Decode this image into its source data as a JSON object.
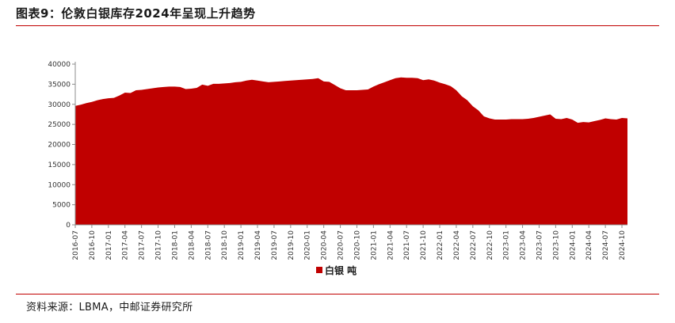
{
  "header": {
    "title": "图表9：伦敦白银库存2024年呈现上升趋势"
  },
  "footer": {
    "source": "资料来源：LBMA，中邮证券研究所"
  },
  "colors": {
    "series": "#c00000",
    "rule": "#c00000",
    "axis": "#8c8c8c"
  },
  "chart_data": {
    "type": "area",
    "ylim": [
      0,
      40000
    ],
    "yticks": [
      0,
      5000,
      10000,
      15000,
      20000,
      25000,
      30000,
      35000,
      40000
    ],
    "xticks": [
      "2016-07",
      "2016-10",
      "2017-01",
      "2017-04",
      "2017-07",
      "2017-10",
      "2018-01",
      "2018-04",
      "2018-07",
      "2018-10",
      "2019-01",
      "2019-04",
      "2019-07",
      "2019-10",
      "2020-01",
      "2020-04",
      "2020-07",
      "2020-10",
      "2021-01",
      "2021-04",
      "2021-07",
      "2021-10",
      "2022-01",
      "2022-04",
      "2022-07",
      "2022-10",
      "2023-01",
      "2023-04",
      "2023-07",
      "2023-10",
      "2024-01",
      "2024-04",
      "2024-07",
      "2024-10"
    ],
    "legend_position": "bottom",
    "series": [
      {
        "name": "白银 吨",
        "x": [
          "2016-07",
          "2016-08",
          "2016-09",
          "2016-10",
          "2016-11",
          "2016-12",
          "2017-01",
          "2017-02",
          "2017-03",
          "2017-04",
          "2017-05",
          "2017-06",
          "2017-07",
          "2017-08",
          "2017-09",
          "2017-10",
          "2017-11",
          "2017-12",
          "2018-01",
          "2018-02",
          "2018-03",
          "2018-04",
          "2018-05",
          "2018-06",
          "2018-07",
          "2018-08",
          "2018-09",
          "2018-10",
          "2018-11",
          "2018-12",
          "2019-01",
          "2019-02",
          "2019-03",
          "2019-04",
          "2019-05",
          "2019-06",
          "2019-07",
          "2019-08",
          "2019-09",
          "2019-10",
          "2019-11",
          "2019-12",
          "2020-01",
          "2020-02",
          "2020-03",
          "2020-04",
          "2020-05",
          "2020-06",
          "2020-07",
          "2020-08",
          "2020-09",
          "2020-10",
          "2020-11",
          "2020-12",
          "2021-01",
          "2021-02",
          "2021-03",
          "2021-04",
          "2021-05",
          "2021-06",
          "2021-07",
          "2021-08",
          "2021-09",
          "2021-10",
          "2021-11",
          "2021-12",
          "2022-01",
          "2022-02",
          "2022-03",
          "2022-04",
          "2022-05",
          "2022-06",
          "2022-07",
          "2022-08",
          "2022-09",
          "2022-10",
          "2022-11",
          "2022-12",
          "2023-01",
          "2023-02",
          "2023-03",
          "2023-04",
          "2023-05",
          "2023-06",
          "2023-07",
          "2023-08",
          "2023-09",
          "2023-10",
          "2023-11",
          "2023-12",
          "2024-01",
          "2024-02",
          "2024-03",
          "2024-04",
          "2024-05",
          "2024-06",
          "2024-07",
          "2024-08",
          "2024-09",
          "2024-10",
          "2024-11"
        ],
        "values": [
          29600,
          29900,
          30300,
          30600,
          31000,
          31300,
          31500,
          31600,
          32200,
          32900,
          32800,
          33500,
          33600,
          33800,
          34000,
          34200,
          34300,
          34400,
          34400,
          34300,
          33800,
          33900,
          34100,
          34900,
          34600,
          35100,
          35100,
          35200,
          35300,
          35500,
          35600,
          35900,
          36100,
          35900,
          35700,
          35500,
          35600,
          35700,
          35800,
          35900,
          36000,
          36100,
          36200,
          36300,
          36500,
          35700,
          35600,
          34800,
          34000,
          33500,
          33500,
          33500,
          33600,
          33700,
          34400,
          35000,
          35500,
          36000,
          36500,
          36700,
          36600,
          36600,
          36500,
          36000,
          36200,
          35900,
          35400,
          35000,
          34500,
          33500,
          32000,
          31000,
          29500,
          28500,
          27000,
          26500,
          26200,
          26200,
          26200,
          26300,
          26300,
          26300,
          26400,
          26600,
          26900,
          27200,
          27500,
          26400,
          26300,
          26600,
          26200,
          25400,
          25600,
          25500,
          25800,
          26100,
          26500,
          26300,
          26200,
          26600,
          26500
        ]
      }
    ]
  }
}
